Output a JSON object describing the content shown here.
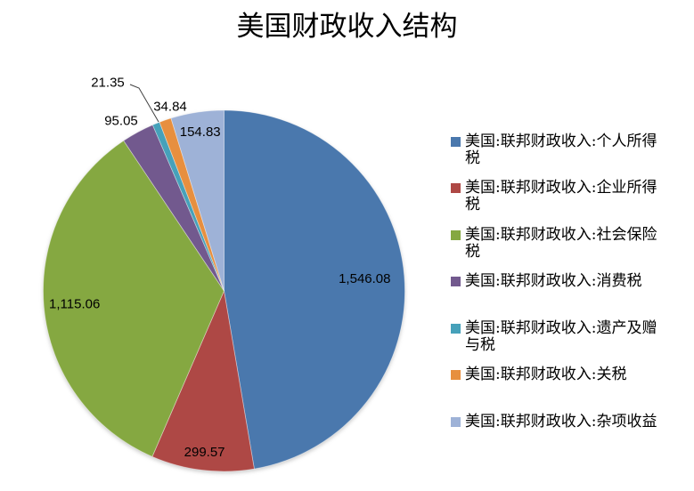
{
  "title": "美国财政收入结构",
  "chart_data": {
    "type": "pie",
    "title": "美国财政收入结构",
    "legend_position": "right",
    "start_angle_deg": 0,
    "direction": "clockwise",
    "series": [
      {
        "name": "美国:联邦财政收入:个人所得税",
        "value": 1546.08,
        "label": "1,546.08",
        "color": "#4A78AD"
      },
      {
        "name": "美国:联邦财政收入:企业所得税",
        "value": 299.57,
        "label": "299.57",
        "color": "#AE4845"
      },
      {
        "name": "美国:联邦财政收入:社会保险税",
        "value": 1115.06,
        "label": "1,115.06",
        "color": "#85A841"
      },
      {
        "name": "美国:联邦财政收入:消费税",
        "value": 95.05,
        "label": "95.05",
        "color": "#72598E"
      },
      {
        "name": "美国:联邦财政收入:遗产及赠与税",
        "value": 21.35,
        "label": "21.35",
        "color": "#46A1BA"
      },
      {
        "name": "美国:联邦财政收入:关税",
        "value": 34.84,
        "label": "34.84",
        "color": "#E78F3F"
      },
      {
        "name": "美国:联邦财政收入:杂项收益",
        "value": 154.83,
        "label": "154.83",
        "color": "#9EB2D7"
      }
    ]
  }
}
